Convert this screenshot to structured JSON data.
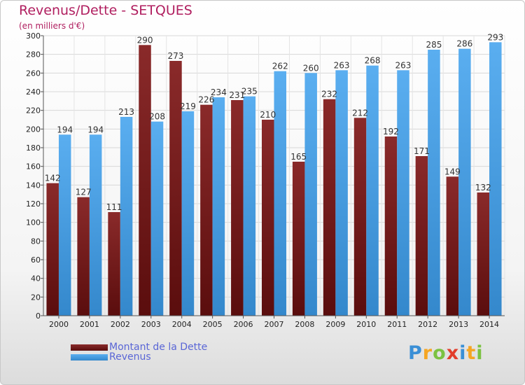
{
  "header": {
    "title": "Revenus/Dette - SETQUES",
    "subtitle": "(en milliers d'€)"
  },
  "legend": {
    "debt_label": "Montant de la Dette",
    "revenue_label": "Revenus"
  },
  "logo": {
    "text": "Proxiti",
    "letters": [
      {
        "char": "P",
        "color": "#3a8fd6"
      },
      {
        "char": "r",
        "color": "#f5a623"
      },
      {
        "char": "o",
        "color": "#7cc242"
      },
      {
        "char": "x",
        "color": "#e23d2a"
      },
      {
        "char": "i",
        "color": "#3a8fd6"
      },
      {
        "char": "t",
        "color": "#f5a623"
      },
      {
        "char": "i",
        "color": "#7cc242"
      }
    ]
  },
  "colors": {
    "debt_top": "#8a2a2a",
    "debt_bottom": "#5a0d0d",
    "revenue_top": "#5aaef0",
    "revenue_bottom": "#3488cc",
    "title": "#b01e5f",
    "legend_text": "#5a66d6"
  },
  "chart_data": {
    "type": "bar",
    "title": "Revenus/Dette - SETQUES",
    "subtitle": "(en milliers d'€)",
    "categories": [
      "2000",
      "2001",
      "2002",
      "2003",
      "2004",
      "2005",
      "2006",
      "2007",
      "2008",
      "2009",
      "2010",
      "2011",
      "2012",
      "2013",
      "2014"
    ],
    "series": [
      {
        "name": "Montant de la Dette",
        "values": [
          142,
          127,
          111,
          290,
          273,
          226,
          231,
          210,
          165,
          232,
          212,
          192,
          171,
          149,
          132
        ]
      },
      {
        "name": "Revenus",
        "values": [
          194,
          194,
          213,
          208,
          219,
          234,
          235,
          262,
          260,
          263,
          268,
          263,
          285,
          286,
          293
        ]
      }
    ],
    "ylim": [
      0,
      300
    ],
    "yticks": [
      0,
      20,
      40,
      60,
      80,
      100,
      120,
      140,
      160,
      180,
      200,
      220,
      240,
      260,
      280,
      300
    ],
    "grid": true,
    "legend_position": "bottom-left"
  }
}
